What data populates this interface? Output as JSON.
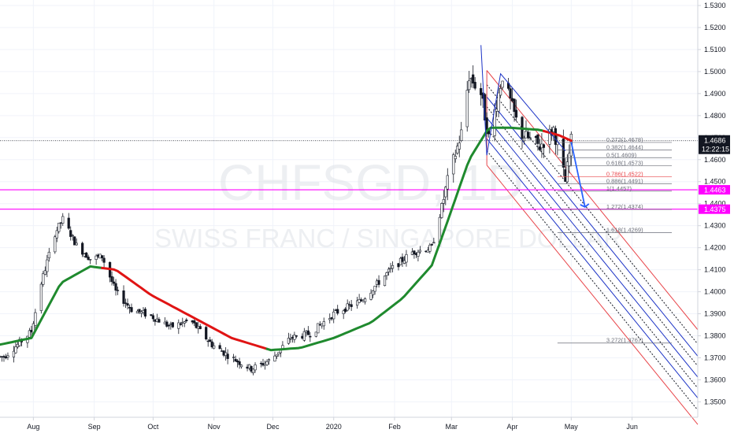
{
  "symbol_watermark": "CHFSGD, 1D",
  "description_watermark": "SWISS FRANC / SINGAPORE DOLLAR",
  "colors": {
    "background": "#ffffff",
    "grid": "#f0f3fa",
    "up_candle": "#131722",
    "ma_up": "#1f8a2e",
    "ma_down": "#e01414",
    "channel_red": "#e8454a",
    "channel_blue": "#1c33c6",
    "horizontal_lines": "#ff00ff",
    "arrow": "#2962ff",
    "last_price_bg": "#131722"
  },
  "chart_data": {
    "type": "candlestick",
    "title": "",
    "ylim": [
      1.343,
      1.5325
    ],
    "y_ticks": [
      "1.5300",
      "1.5200",
      "1.5100",
      "1.5000",
      "1.4900",
      "1.4800",
      "1.4700",
      "1.4600",
      "1.4500",
      "1.4400",
      "1.4300",
      "1.4200",
      "1.4100",
      "1.4000",
      "1.3900",
      "1.3800",
      "1.3700",
      "1.3600",
      "1.3500"
    ],
    "x_labels": [
      "Aug",
      "Sep",
      "Oct",
      "Nov",
      "Dec",
      "2020",
      "Feb",
      "Mar",
      "Apr",
      "May",
      "Jun"
    ],
    "grid": true,
    "price_path": [
      {
        "date": "2019-07-17",
        "close": 1.3705
      },
      {
        "date": "2019-07-24",
        "close": 1.376
      },
      {
        "date": "2019-07-31",
        "close": 1.382
      },
      {
        "date": "2019-08-05",
        "close": 1.404
      },
      {
        "date": "2019-08-12",
        "close": 1.4265
      },
      {
        "date": "2019-08-16",
        "close": 1.433
      },
      {
        "date": "2019-08-23",
        "close": 1.421
      },
      {
        "date": "2019-08-30",
        "close": 1.415
      },
      {
        "date": "2019-09-05",
        "close": 1.416
      },
      {
        "date": "2019-09-12",
        "close": 1.4
      },
      {
        "date": "2019-09-20",
        "close": 1.392
      },
      {
        "date": "2019-09-30",
        "close": 1.389
      },
      {
        "date": "2019-10-10",
        "close": 1.384
      },
      {
        "date": "2019-10-20",
        "close": 1.387
      },
      {
        "date": "2019-10-31",
        "close": 1.376
      },
      {
        "date": "2019-11-10",
        "close": 1.37
      },
      {
        "date": "2019-11-20",
        "close": 1.365
      },
      {
        "date": "2019-11-30",
        "close": 1.369
      },
      {
        "date": "2019-12-10",
        "close": 1.379
      },
      {
        "date": "2019-12-20",
        "close": 1.381
      },
      {
        "date": "2020-01-01",
        "close": 1.39
      },
      {
        "date": "2020-01-15",
        "close": 1.396
      },
      {
        "date": "2020-01-30",
        "close": 1.41
      },
      {
        "date": "2020-02-10",
        "close": 1.418
      },
      {
        "date": "2020-02-20",
        "close": 1.42
      },
      {
        "date": "2020-02-28",
        "close": 1.45
      },
      {
        "date": "2020-03-06",
        "close": 1.472
      },
      {
        "date": "2020-03-10",
        "close": 1.498
      },
      {
        "date": "2020-03-16",
        "close": 1.49
      },
      {
        "date": "2020-03-20",
        "close": 1.47
      },
      {
        "date": "2020-03-27",
        "close": 1.498
      },
      {
        "date": "2020-04-05",
        "close": 1.472
      },
      {
        "date": "2020-04-15",
        "close": 1.466
      },
      {
        "date": "2020-04-22",
        "close": 1.474
      },
      {
        "date": "2020-04-28",
        "close": 1.45
      },
      {
        "date": "2020-05-01",
        "close": 1.4686
      }
    ],
    "moving_average": [
      {
        "date": "2019-07-15",
        "value": 1.376
      },
      {
        "date": "2019-07-31",
        "value": 1.379
      },
      {
        "date": "2019-08-15",
        "value": 1.404
      },
      {
        "date": "2019-08-30",
        "value": 1.4115
      },
      {
        "date": "2019-09-12",
        "value": 1.41
      },
      {
        "date": "2019-09-30",
        "value": 1.3985
      },
      {
        "date": "2019-10-20",
        "value": 1.389
      },
      {
        "date": "2019-11-10",
        "value": 1.379
      },
      {
        "date": "2019-11-30",
        "value": 1.3735
      },
      {
        "date": "2019-12-15",
        "value": 1.3745
      },
      {
        "date": "2020-01-01",
        "value": 1.379
      },
      {
        "date": "2020-01-20",
        "value": 1.386
      },
      {
        "date": "2020-02-05",
        "value": 1.397
      },
      {
        "date": "2020-02-20",
        "value": 1.412
      },
      {
        "date": "2020-02-28",
        "value": 1.432
      },
      {
        "date": "2020-03-10",
        "value": 1.46
      },
      {
        "date": "2020-03-20",
        "value": 1.4745
      },
      {
        "date": "2020-03-31",
        "value": 1.4745
      },
      {
        "date": "2020-04-15",
        "value": 1.4735
      },
      {
        "date": "2020-04-25",
        "value": 1.471
      },
      {
        "date": "2020-05-01",
        "value": 1.4686
      }
    ],
    "ma_color_switches": [
      {
        "from": "2019-07-15",
        "to": "2019-09-05",
        "color": "green"
      },
      {
        "from": "2019-09-05",
        "to": "2019-11-28",
        "color": "red"
      },
      {
        "from": "2019-11-28",
        "to": "2020-04-17",
        "color": "green"
      },
      {
        "from": "2020-04-17",
        "to": "2020-05-01",
        "color": "red"
      }
    ],
    "horizontal_levels": [
      {
        "value": 1.4463,
        "label": "1.4463"
      },
      {
        "value": 1.4375,
        "label": "1.4375"
      }
    ],
    "last_price": {
      "value": 1.4686,
      "label": "1.4686",
      "time": "12:22:15"
    },
    "fib_levels": [
      {
        "label": "0.272(1.4678)",
        "value": 1.4678,
        "color": "grey"
      },
      {
        "label": "0.382(1.4644)",
        "value": 1.4644,
        "color": "grey"
      },
      {
        "label": "0.5(1.4609)",
        "value": 1.4609,
        "color": "grey"
      },
      {
        "label": "0.618(1.4573)",
        "value": 1.4573,
        "color": "grey"
      },
      {
        "label": "0.786(1.4522)",
        "value": 1.4522,
        "color": "red"
      },
      {
        "label": "0.886(1.4491)",
        "value": 1.4491,
        "color": "grey"
      },
      {
        "label": "1(1.4457)",
        "value": 1.4457,
        "color": "grey"
      },
      {
        "label": "1.272(1.4374)",
        "value": 1.4374,
        "color": "grey"
      },
      {
        "label": "1.618(1.4269)",
        "value": 1.4269,
        "color": "grey"
      },
      {
        "label": "3.272(1.3767)",
        "value": 1.3767,
        "color": "grey"
      }
    ]
  }
}
